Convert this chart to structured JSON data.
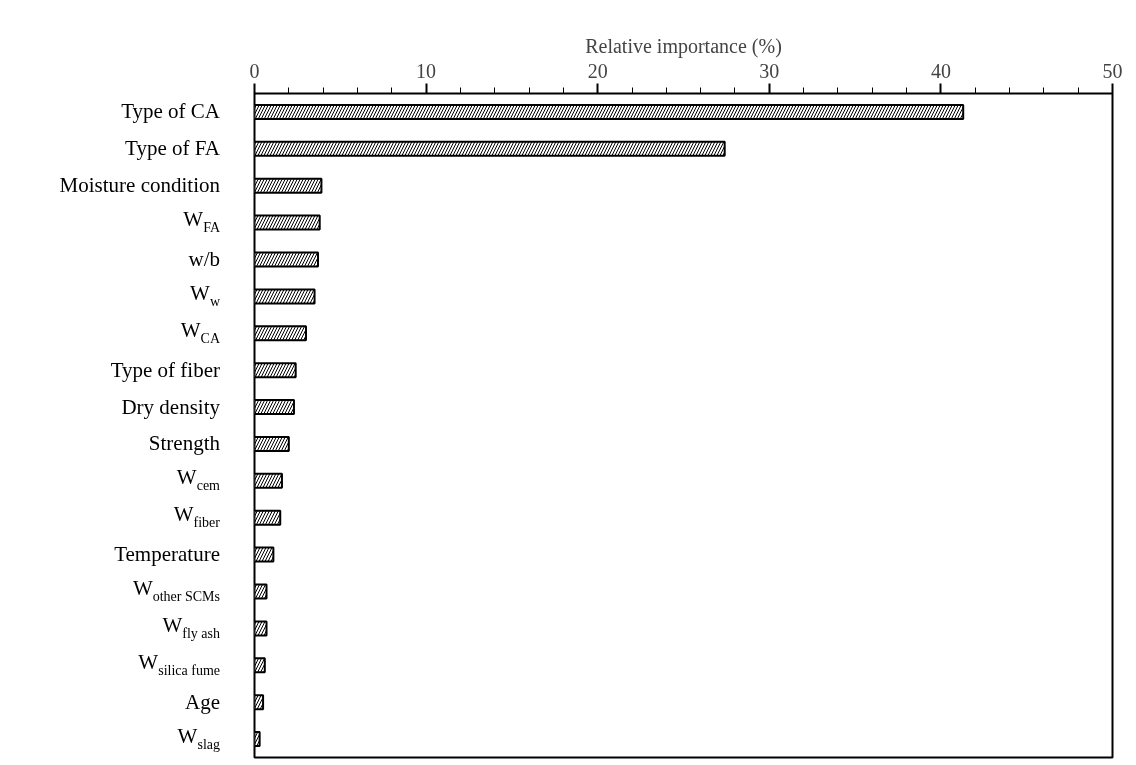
{
  "chart_data": {
    "type": "bar",
    "orientation": "horizontal",
    "xlabel": "Relative importance (%)",
    "categories": [
      "Type of CA",
      "Type of FA",
      "Moisture condition",
      "W$_{FA}$",
      "w/b",
      "W$_{w}$",
      "W$_{CA}$",
      "Type of fiber",
      "Dry density",
      "Strength",
      "W$_{cem}$",
      "W$_{fiber}$",
      "Temperature",
      "W$_{other SCMs}$",
      "W$_{fly ash}$",
      "W$_{silica fume}$",
      "Age",
      "W$_{slag}$"
    ],
    "values": [
      41.3,
      27.4,
      3.9,
      3.8,
      3.7,
      3.5,
      3.0,
      2.4,
      2.3,
      2.0,
      1.6,
      1.5,
      1.1,
      0.7,
      0.7,
      0.6,
      0.5,
      0.3
    ],
    "xlim": [
      0,
      50
    ],
    "xticks": [
      0,
      10,
      20,
      30,
      40,
      50
    ],
    "grid": false
  }
}
